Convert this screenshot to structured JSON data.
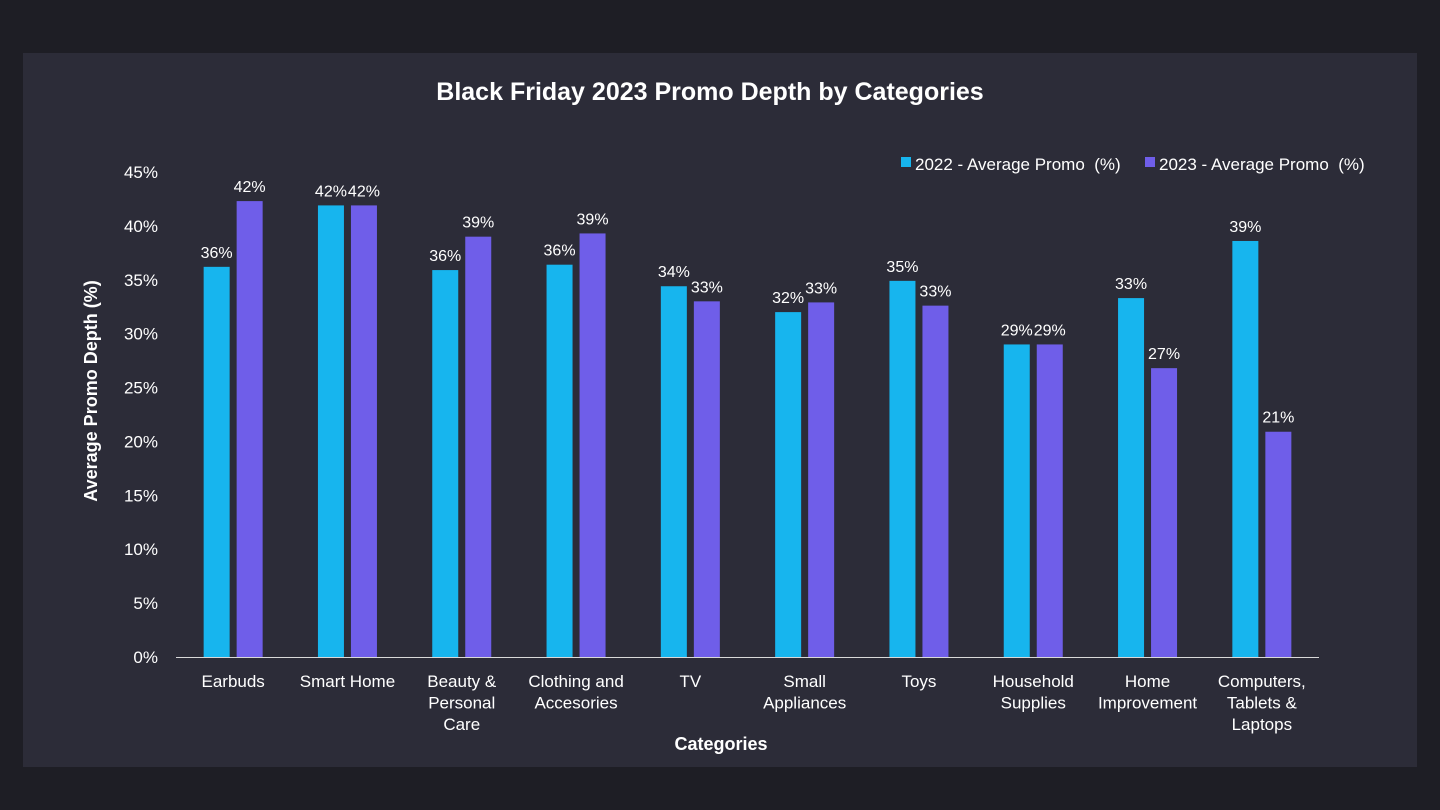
{
  "colors": {
    "background": "#1e1e25",
    "panel": "#2c2c38",
    "series_2022": "#17b5ee",
    "series_2023": "#6f5ee9",
    "text": "#ffffff",
    "axis_line": "#d9d9d9"
  },
  "chart_data": {
    "type": "bar",
    "title": "Black Friday 2023 Promo Depth by Categories",
    "xlabel": "Categories",
    "ylabel": "Average Promo Depth (%)",
    "ylim": [
      0,
      45
    ],
    "ytick_values": [
      0,
      5,
      10,
      15,
      20,
      25,
      30,
      35,
      40,
      45
    ],
    "ytick_labels": [
      "0%",
      "5%",
      "10%",
      "15%",
      "20%",
      "25%",
      "30%",
      "35%",
      "40%",
      "45%"
    ],
    "grid": false,
    "legend_position": "top-right",
    "categories": [
      [
        "Earbuds"
      ],
      [
        "Smart Home"
      ],
      [
        "Beauty &",
        "Personal",
        "Care"
      ],
      [
        "Clothing and",
        "Accesories"
      ],
      [
        "TV"
      ],
      [
        "Small",
        "Appliances"
      ],
      [
        "Toys"
      ],
      [
        "Household",
        "Supplies"
      ],
      [
        "Home",
        "Improvement"
      ],
      [
        "Computers,",
        "Tablets &",
        "Laptops"
      ]
    ],
    "series": [
      {
        "name": "2022 - Average Promo  (%)",
        "color": "#17b5ee",
        "values": [
          36.2,
          41.9,
          35.9,
          36.4,
          34.4,
          32.0,
          34.9,
          29.0,
          33.3,
          38.6
        ],
        "labels": [
          "36%",
          "42%",
          "36%",
          "36%",
          "34%",
          "32%",
          "35%",
          "29%",
          "33%",
          "39%"
        ]
      },
      {
        "name": "2023 - Average Promo  (%)",
        "color": "#6f5ee9",
        "values": [
          42.3,
          41.9,
          39.0,
          39.3,
          33.0,
          32.9,
          32.6,
          29.0,
          26.8,
          20.9
        ],
        "labels": [
          "42%",
          "42%",
          "39%",
          "39%",
          "33%",
          "33%",
          "33%",
          "29%",
          "27%",
          "21%"
        ]
      }
    ]
  }
}
